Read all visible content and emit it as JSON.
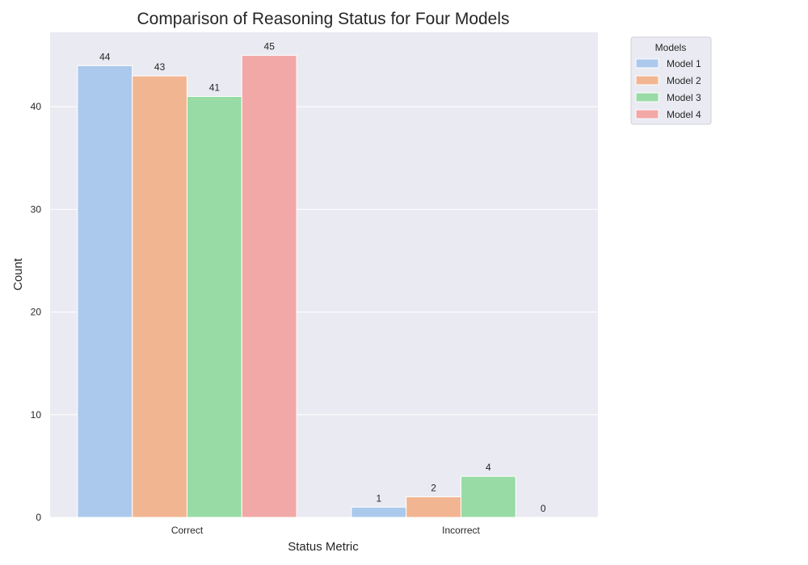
{
  "chart_data": {
    "type": "bar",
    "title": "Comparison of Reasoning Status for Four Models",
    "xlabel": "Status Metric",
    "ylabel": "Count",
    "categories": [
      "Correct",
      "Incorrect"
    ],
    "series": [
      {
        "name": "Model 1",
        "values": [
          44,
          1
        ],
        "color": "#abc9ec"
      },
      {
        "name": "Model 2",
        "values": [
          43,
          2
        ],
        "color": "#f1b691"
      },
      {
        "name": "Model 3",
        "values": [
          41,
          4
        ],
        "color": "#98dba5"
      },
      {
        "name": "Model 4",
        "values": [
          45,
          0
        ],
        "color": "#f2a8a7"
      }
    ],
    "ylim": [
      0,
      47.25
    ],
    "yticks": [
      0,
      10,
      20,
      30,
      40
    ],
    "grid": true,
    "legend": {
      "title": "Models",
      "placement": "outside top-right"
    },
    "background_color": "#eaeaf2",
    "grid_color": "#ffffff"
  }
}
